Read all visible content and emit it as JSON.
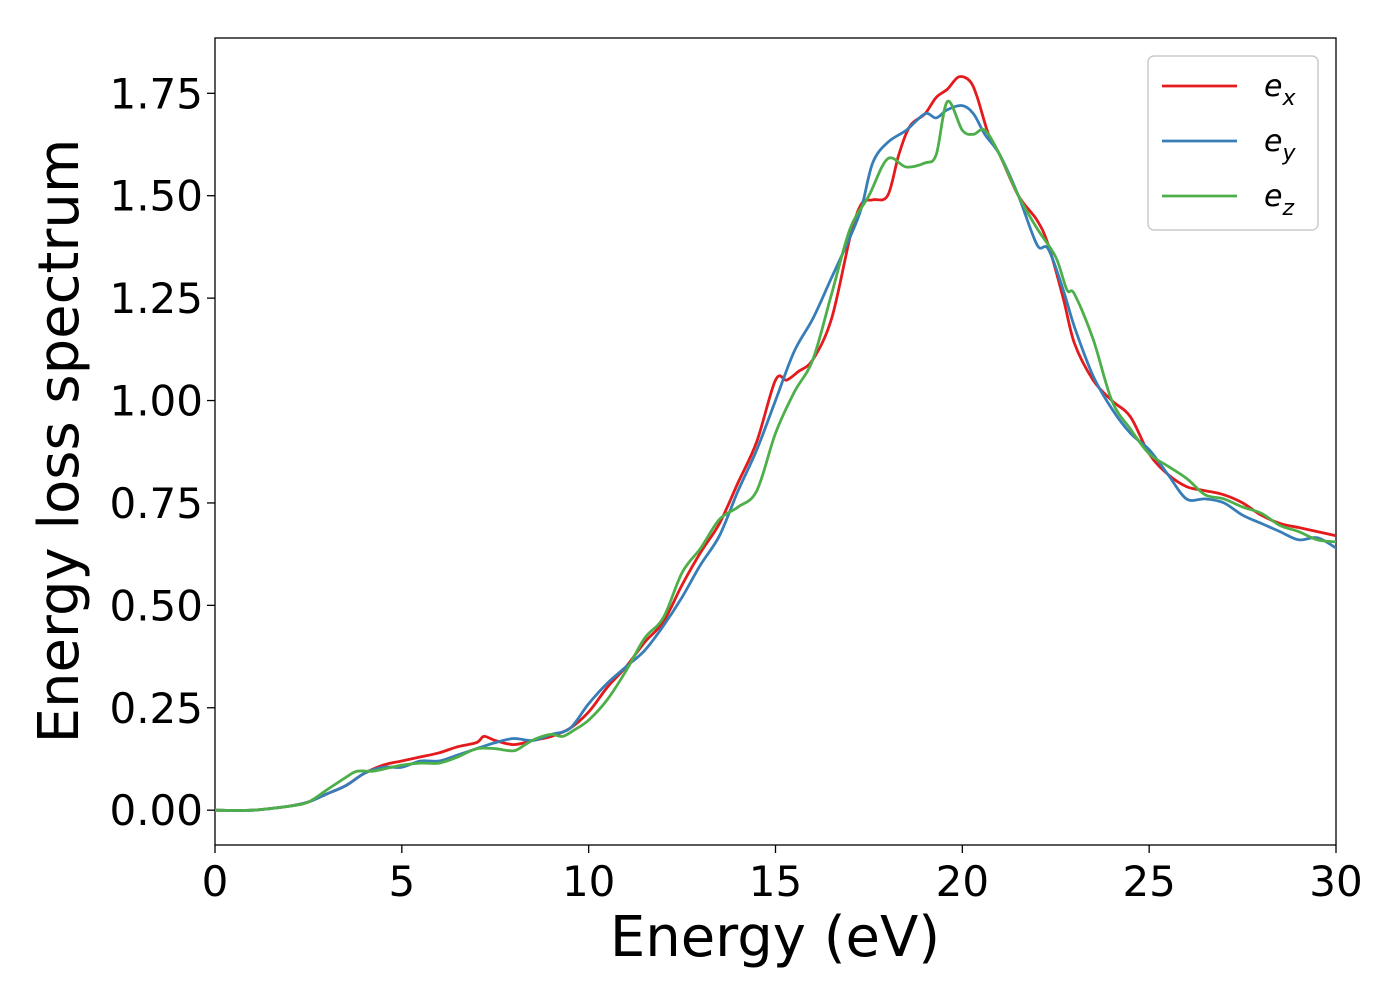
{
  "chart_data": {
    "type": "line",
    "title": "",
    "xlabel": "Energy (eV)",
    "ylabel": "Energy loss spectrum",
    "xlim": [
      0,
      30
    ],
    "ylim": [
      -0.085,
      1.885
    ],
    "xticks": [
      0,
      5,
      10,
      15,
      20,
      25,
      30
    ],
    "xtick_labels": [
      "0",
      "5",
      "10",
      "15",
      "20",
      "25",
      "30"
    ],
    "yticks": [
      0.0,
      0.25,
      0.5,
      0.75,
      1.0,
      1.25,
      1.5,
      1.75
    ],
    "ytick_labels": [
      "0.00",
      "0.25",
      "0.50",
      "0.75",
      "1.00",
      "1.25",
      "1.50",
      "1.75"
    ],
    "grid": false,
    "legend_position": "top-right",
    "series": [
      {
        "name": "e",
        "sub": "x",
        "color": "#e41a1c",
        "points": [
          [
            0,
            0
          ],
          [
            1,
            0.0
          ],
          [
            2,
            0.01
          ],
          [
            2.5,
            0.02
          ],
          [
            3,
            0.04
          ],
          [
            3.5,
            0.06
          ],
          [
            4,
            0.09
          ],
          [
            4.5,
            0.11
          ],
          [
            5,
            0.12
          ],
          [
            5.5,
            0.13
          ],
          [
            6,
            0.14
          ],
          [
            6.5,
            0.155
          ],
          [
            7,
            0.165
          ],
          [
            7.2,
            0.18
          ],
          [
            7.5,
            0.17
          ],
          [
            8,
            0.16
          ],
          [
            8.5,
            0.17
          ],
          [
            9,
            0.18
          ],
          [
            9.5,
            0.2
          ],
          [
            10,
            0.24
          ],
          [
            10.5,
            0.3
          ],
          [
            11,
            0.35
          ],
          [
            11.5,
            0.41
          ],
          [
            12,
            0.46
          ],
          [
            12.5,
            0.55
          ],
          [
            13,
            0.63
          ],
          [
            13.5,
            0.7
          ],
          [
            14,
            0.8
          ],
          [
            14.5,
            0.9
          ],
          [
            15,
            1.05
          ],
          [
            15.3,
            1.05
          ],
          [
            15.6,
            1.07
          ],
          [
            16,
            1.1
          ],
          [
            16.5,
            1.2
          ],
          [
            17,
            1.4
          ],
          [
            17.3,
            1.48
          ],
          [
            17.6,
            1.49
          ],
          [
            18,
            1.5
          ],
          [
            18.3,
            1.6
          ],
          [
            18.6,
            1.67
          ],
          [
            19,
            1.7
          ],
          [
            19.3,
            1.74
          ],
          [
            19.6,
            1.76
          ],
          [
            19.9,
            1.79
          ],
          [
            20.2,
            1.78
          ],
          [
            20.4,
            1.74
          ],
          [
            20.7,
            1.65
          ],
          [
            21,
            1.6
          ],
          [
            21.5,
            1.5
          ],
          [
            22,
            1.44
          ],
          [
            22.3,
            1.38
          ],
          [
            22.7,
            1.25
          ],
          [
            23,
            1.14
          ],
          [
            23.5,
            1.05
          ],
          [
            24,
            1.0
          ],
          [
            24.5,
            0.96
          ],
          [
            25,
            0.87
          ],
          [
            25.5,
            0.82
          ],
          [
            26,
            0.79
          ],
          [
            26.5,
            0.78
          ],
          [
            27,
            0.77
          ],
          [
            27.5,
            0.75
          ],
          [
            28,
            0.72
          ],
          [
            28.5,
            0.7
          ],
          [
            29,
            0.69
          ],
          [
            29.5,
            0.68
          ],
          [
            30,
            0.67
          ]
        ]
      },
      {
        "name": "e",
        "sub": "y",
        "color": "#377eb8",
        "points": [
          [
            0,
            0
          ],
          [
            1,
            0.0
          ],
          [
            2,
            0.01
          ],
          [
            2.5,
            0.02
          ],
          [
            3,
            0.04
          ],
          [
            3.5,
            0.06
          ],
          [
            4,
            0.09
          ],
          [
            4.5,
            0.105
          ],
          [
            5,
            0.105
          ],
          [
            5.5,
            0.12
          ],
          [
            6,
            0.12
          ],
          [
            6.5,
            0.135
          ],
          [
            7,
            0.15
          ],
          [
            7.5,
            0.165
          ],
          [
            8,
            0.175
          ],
          [
            8.5,
            0.17
          ],
          [
            9,
            0.185
          ],
          [
            9.5,
            0.2
          ],
          [
            10,
            0.26
          ],
          [
            10.5,
            0.31
          ],
          [
            11,
            0.35
          ],
          [
            11.5,
            0.39
          ],
          [
            12,
            0.45
          ],
          [
            12.5,
            0.52
          ],
          [
            13,
            0.6
          ],
          [
            13.5,
            0.67
          ],
          [
            14,
            0.78
          ],
          [
            14.5,
            0.88
          ],
          [
            15,
            1.0
          ],
          [
            15.5,
            1.12
          ],
          [
            16,
            1.2
          ],
          [
            16.5,
            1.3
          ],
          [
            17,
            1.4
          ],
          [
            17.3,
            1.47
          ],
          [
            17.6,
            1.58
          ],
          [
            18,
            1.63
          ],
          [
            18.5,
            1.66
          ],
          [
            19,
            1.7
          ],
          [
            19.3,
            1.69
          ],
          [
            19.6,
            1.71
          ],
          [
            20,
            1.72
          ],
          [
            20.3,
            1.7
          ],
          [
            20.6,
            1.65
          ],
          [
            21,
            1.6
          ],
          [
            21.5,
            1.5
          ],
          [
            22,
            1.38
          ],
          [
            22.3,
            1.37
          ],
          [
            22.7,
            1.27
          ],
          [
            23,
            1.18
          ],
          [
            23.5,
            1.06
          ],
          [
            24,
            0.98
          ],
          [
            24.5,
            0.92
          ],
          [
            25,
            0.88
          ],
          [
            25.5,
            0.82
          ],
          [
            26,
            0.76
          ],
          [
            26.5,
            0.76
          ],
          [
            27,
            0.75
          ],
          [
            27.5,
            0.72
          ],
          [
            28,
            0.7
          ],
          [
            28.5,
            0.68
          ],
          [
            29,
            0.66
          ],
          [
            29.5,
            0.665
          ],
          [
            30,
            0.64
          ]
        ]
      },
      {
        "name": "e",
        "sub": "z",
        "color": "#4daf4a",
        "points": [
          [
            0,
            0
          ],
          [
            1,
            0.0
          ],
          [
            2,
            0.01
          ],
          [
            2.5,
            0.02
          ],
          [
            3,
            0.05
          ],
          [
            3.5,
            0.08
          ],
          [
            3.8,
            0.095
          ],
          [
            4.2,
            0.095
          ],
          [
            4.5,
            0.1
          ],
          [
            5,
            0.11
          ],
          [
            5.5,
            0.115
          ],
          [
            6,
            0.115
          ],
          [
            6.5,
            0.13
          ],
          [
            7,
            0.15
          ],
          [
            7.5,
            0.15
          ],
          [
            8,
            0.145
          ],
          [
            8.3,
            0.16
          ],
          [
            8.6,
            0.175
          ],
          [
            9,
            0.185
          ],
          [
            9.3,
            0.18
          ],
          [
            9.6,
            0.195
          ],
          [
            10,
            0.22
          ],
          [
            10.5,
            0.27
          ],
          [
            11,
            0.34
          ],
          [
            11.5,
            0.42
          ],
          [
            12,
            0.47
          ],
          [
            12.5,
            0.58
          ],
          [
            13,
            0.64
          ],
          [
            13.5,
            0.71
          ],
          [
            14,
            0.74
          ],
          [
            14.5,
            0.78
          ],
          [
            15,
            0.92
          ],
          [
            15.5,
            1.02
          ],
          [
            16,
            1.1
          ],
          [
            16.5,
            1.26
          ],
          [
            17,
            1.42
          ],
          [
            17.5,
            1.5
          ],
          [
            18,
            1.59
          ],
          [
            18.5,
            1.57
          ],
          [
            19,
            1.58
          ],
          [
            19.3,
            1.6
          ],
          [
            19.6,
            1.73
          ],
          [
            20,
            1.66
          ],
          [
            20.3,
            1.65
          ],
          [
            20.6,
            1.66
          ],
          [
            21,
            1.6
          ],
          [
            21.5,
            1.5
          ],
          [
            22,
            1.42
          ],
          [
            22.5,
            1.35
          ],
          [
            22.8,
            1.27
          ],
          [
            23,
            1.26
          ],
          [
            23.5,
            1.15
          ],
          [
            24,
            1.0
          ],
          [
            24.5,
            0.93
          ],
          [
            25,
            0.87
          ],
          [
            25.5,
            0.84
          ],
          [
            26,
            0.81
          ],
          [
            26.5,
            0.77
          ],
          [
            27,
            0.76
          ],
          [
            27.5,
            0.74
          ],
          [
            28,
            0.725
          ],
          [
            28.5,
            0.695
          ],
          [
            29,
            0.68
          ],
          [
            29.5,
            0.66
          ],
          [
            30,
            0.655
          ]
        ]
      }
    ]
  }
}
